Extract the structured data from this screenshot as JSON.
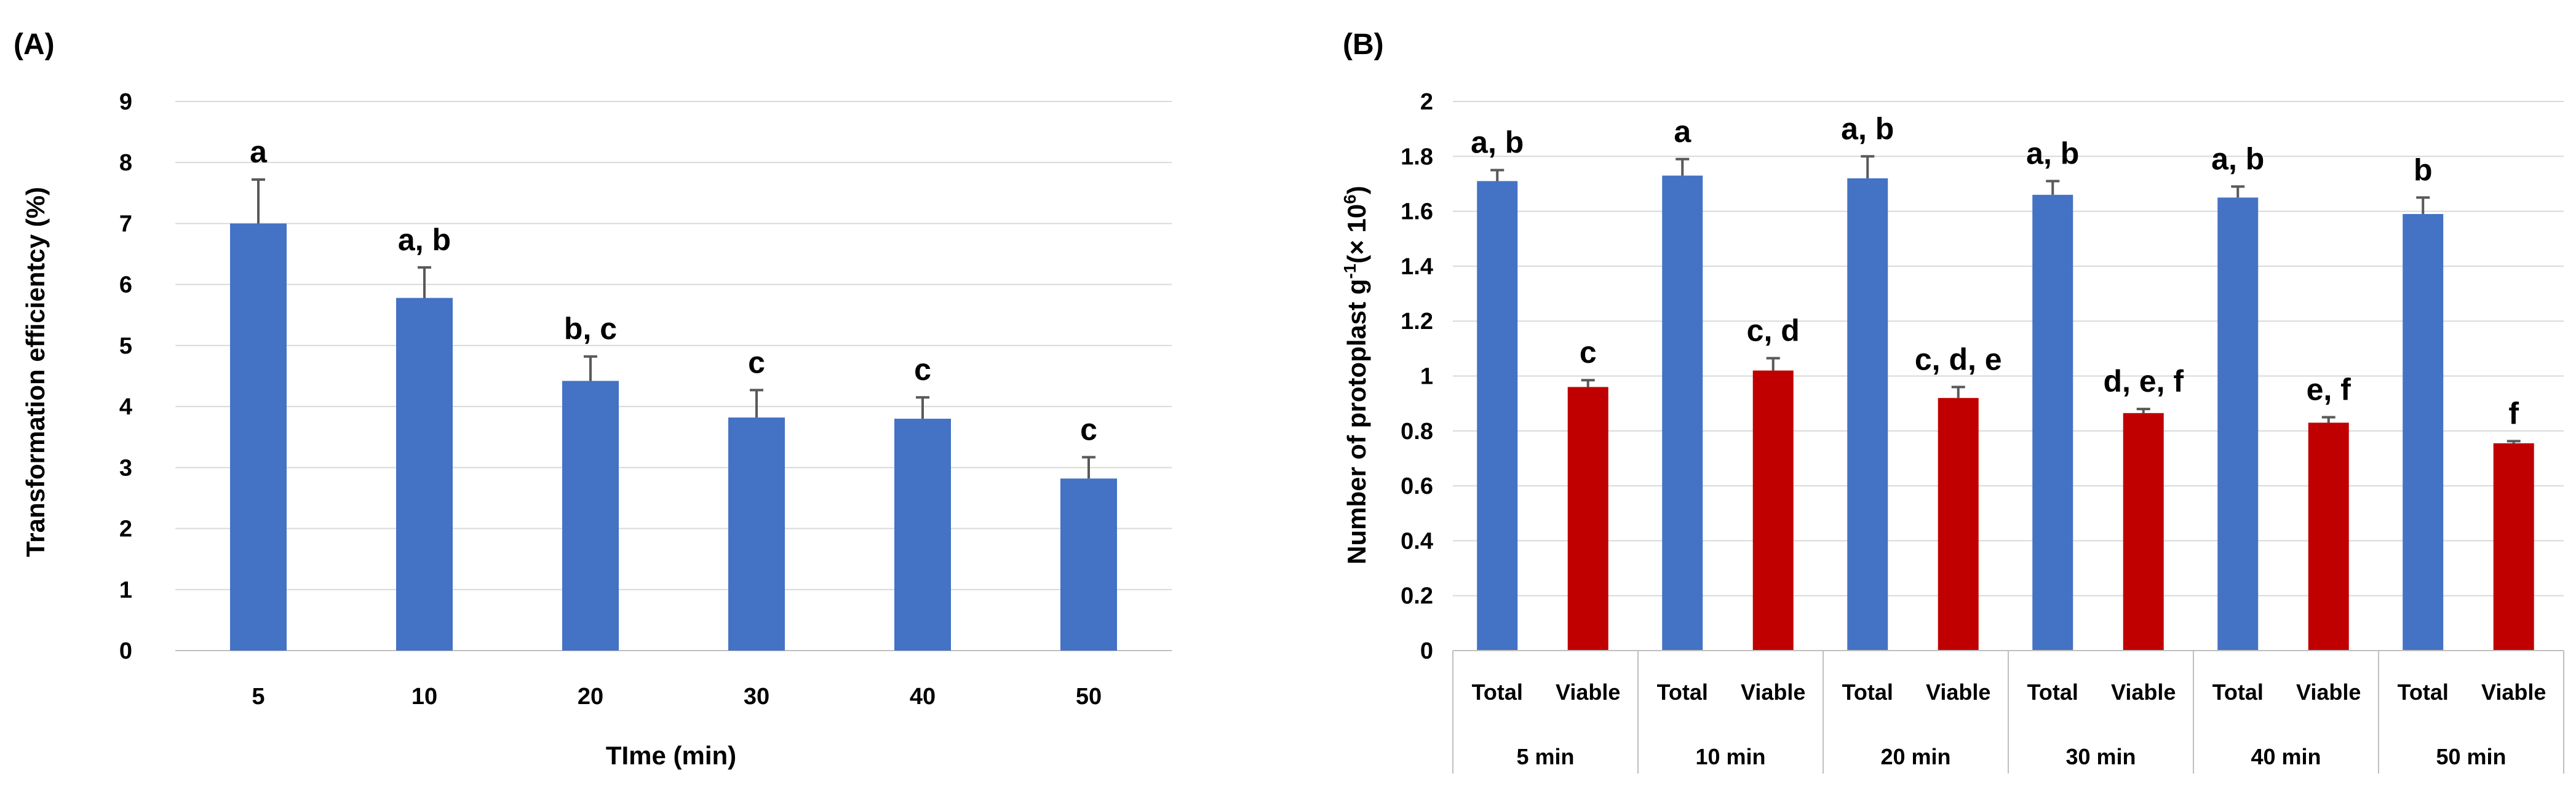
{
  "chart_data": [
    {
      "panel": "(A)",
      "type": "bar",
      "categories": [
        "5",
        "10",
        "20",
        "30",
        "40",
        "50"
      ],
      "values": [
        7.0,
        5.78,
        4.42,
        3.82,
        3.8,
        2.82
      ],
      "errors": [
        0.72,
        0.5,
        0.4,
        0.45,
        0.35,
        0.35
      ],
      "letters": [
        "a",
        "a, b",
        "b, c",
        "c",
        "c",
        "c"
      ],
      "color": "#4472C4",
      "xlabel": "TIme (min)",
      "ylabel": "Transformation efficientcy (%)",
      "ylim": [
        0,
        9
      ],
      "yticks": [
        "0",
        "1",
        "2",
        "3",
        "4",
        "5",
        "6",
        "7",
        "8",
        "9"
      ],
      "grid": true
    },
    {
      "panel": "(B)",
      "type": "bar",
      "groups": [
        "5 min",
        "10 min",
        "20 min",
        "30 min",
        "40 min",
        "50 min"
      ],
      "subcategories": [
        "Total",
        "Viable"
      ],
      "series": [
        {
          "name": "Total",
          "color": "#4472C4",
          "values": [
            1.71,
            1.73,
            1.72,
            1.66,
            1.65,
            1.59
          ],
          "errors": [
            0.04,
            0.06,
            0.08,
            0.05,
            0.04,
            0.06
          ],
          "letters": [
            "a, b",
            "a",
            "a, b",
            "a, b",
            "a, b",
            "b"
          ]
        },
        {
          "name": "Viable",
          "color": "#C00000",
          "values": [
            0.96,
            1.02,
            0.92,
            0.865,
            0.83,
            0.755
          ],
          "errors": [
            0.025,
            0.045,
            0.04,
            0.015,
            0.02,
            0.008
          ],
          "letters": [
            "c",
            "c, d",
            "c, d, e",
            "d, e, f",
            "e, f",
            "f"
          ]
        }
      ],
      "ylabel_main": "Number of protoplast g",
      "ylabel_sup1": "-1",
      "ylabel_mid": "(× 10",
      "ylabel_sup2": "6",
      "ylabel_end": ")",
      "ylim": [
        0,
        2
      ],
      "yticks": [
        "0",
        "0.2",
        "0.4",
        "0.6",
        "0.8",
        "1",
        "1.2",
        "1.4",
        "1.6",
        "1.8",
        "2"
      ],
      "grid": true
    }
  ]
}
